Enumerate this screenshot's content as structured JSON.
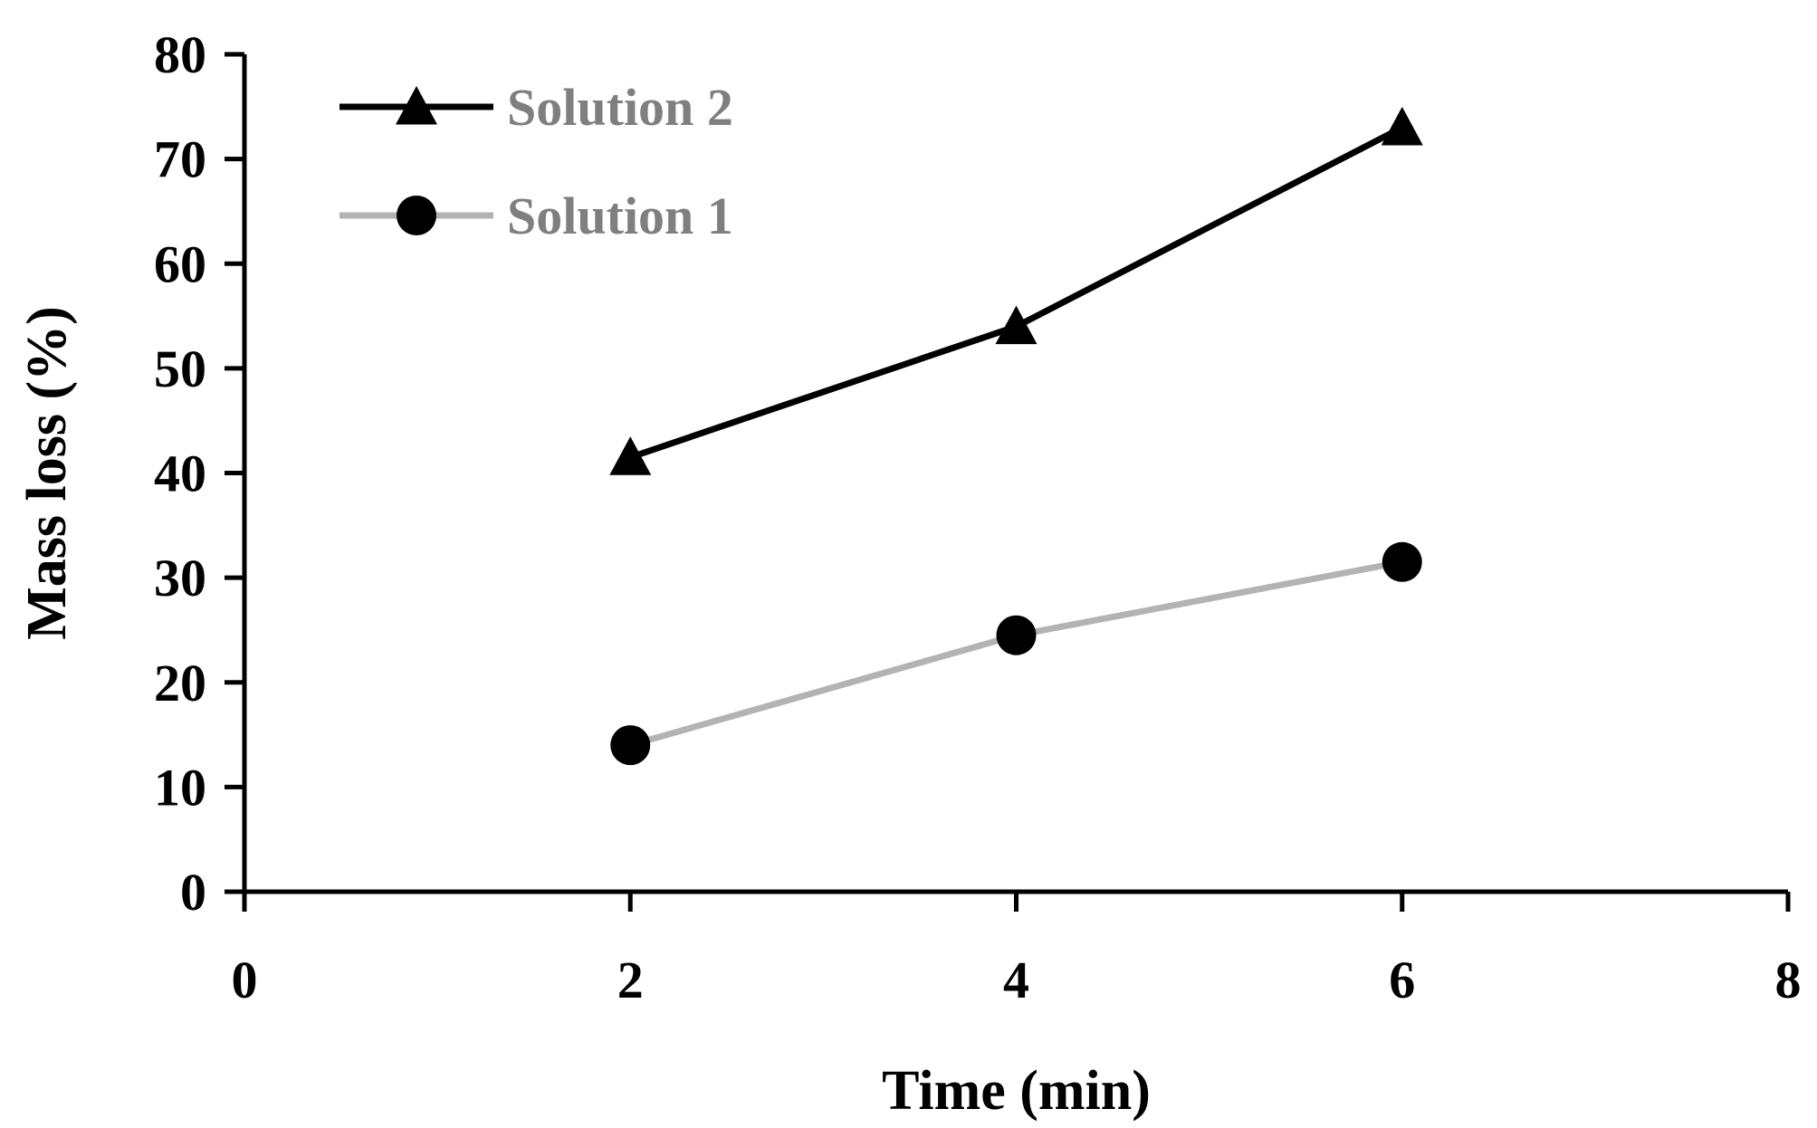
{
  "chart_data": {
    "type": "line",
    "title": "",
    "xlabel": "Time (min)",
    "ylabel": "Mass loss (%)",
    "xlim": [
      0,
      8
    ],
    "ylim": [
      0,
      80
    ],
    "x_ticks": [
      "0",
      "2",
      "4",
      "6",
      "8"
    ],
    "y_ticks": [
      "0",
      "10",
      "20",
      "30",
      "40",
      "50",
      "60",
      "70",
      "80"
    ],
    "grid": false,
    "legend_position": "top-left",
    "series": [
      {
        "name": "Solution 2",
        "marker": "triangle",
        "color": "#000000",
        "points": [
          {
            "x": 2,
            "y": 41.5
          },
          {
            "x": 4,
            "y": 54
          },
          {
            "x": 6,
            "y": 73
          }
        ]
      },
      {
        "name": "Solution 1",
        "marker": "circle",
        "color": "#b3b3b3",
        "marker_color": "#000000",
        "points": [
          {
            "x": 2,
            "y": 14
          },
          {
            "x": 4,
            "y": 24.5
          },
          {
            "x": 6,
            "y": 31.5
          }
        ]
      }
    ]
  }
}
